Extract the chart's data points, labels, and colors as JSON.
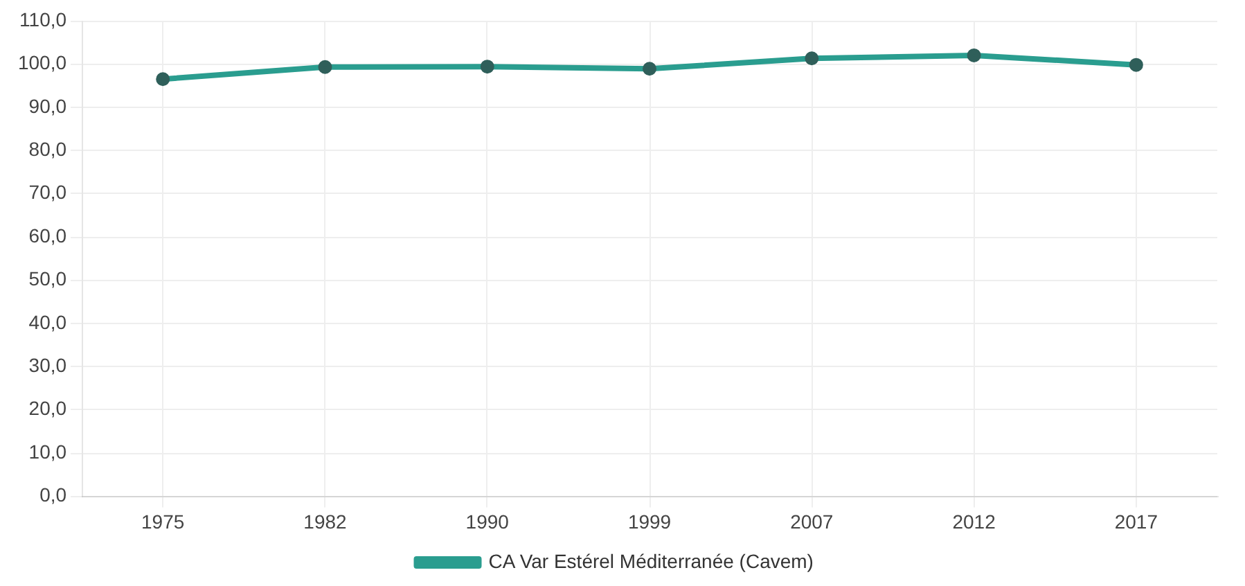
{
  "chart_data": {
    "type": "line",
    "categories": [
      "1975",
      "1982",
      "1990",
      "1999",
      "2007",
      "2012",
      "2017"
    ],
    "series": [
      {
        "name": "CA Var Estérel Méditerranée (Cavem)",
        "color": "#2a9d8f",
        "values": [
          96.5,
          99.3,
          99.4,
          98.9,
          101.3,
          102.0,
          99.8
        ]
      }
    ],
    "ylim": [
      0,
      110
    ],
    "yticks": [
      {
        "value": 0,
        "label": "0,0"
      },
      {
        "value": 10,
        "label": "10,0"
      },
      {
        "value": 20,
        "label": "20,0"
      },
      {
        "value": 30,
        "label": "30,0"
      },
      {
        "value": 40,
        "label": "40,0"
      },
      {
        "value": 50,
        "label": "50,0"
      },
      {
        "value": 60,
        "label": "60,0"
      },
      {
        "value": 70,
        "label": "70,0"
      },
      {
        "value": 80,
        "label": "80,0"
      },
      {
        "value": 90,
        "label": "90,0"
      },
      {
        "value": 100,
        "label": "100,0"
      },
      {
        "value": 110,
        "label": "110,0"
      }
    ],
    "grid": true,
    "legend": "bottom",
    "marker": "circle"
  }
}
